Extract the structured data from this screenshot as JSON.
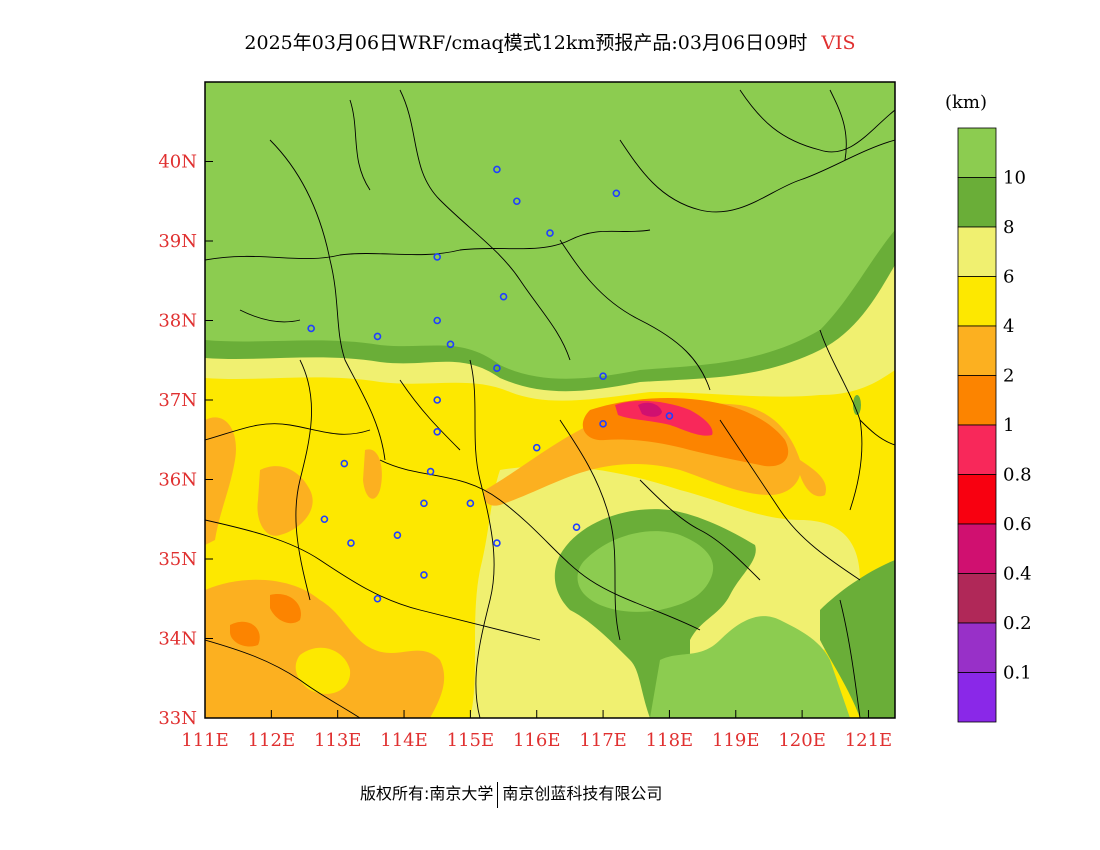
{
  "title": {
    "main": "2025年03月06日WRF/cmaq模式12km预报产品:03月06日09时",
    "variable": "VIS"
  },
  "colors": {
    "axis_label": "#e03030",
    "title_variable": "#e03030",
    "map_frame": "#000000",
    "boundary": "#000000",
    "city_marker": "#2040ff"
  },
  "map": {
    "lon_range": [
      111,
      121.4
    ],
    "lat_range": [
      33,
      41
    ],
    "x_ticks": [
      "111E",
      "112E",
      "113E",
      "114E",
      "115E",
      "116E",
      "117E",
      "118E",
      "119E",
      "120E",
      "121E"
    ],
    "y_ticks": [
      "33N",
      "34N",
      "35N",
      "36N",
      "37N",
      "38N",
      "39N",
      "40N"
    ],
    "cities": [
      {
        "lon": 115.4,
        "lat": 39.9
      },
      {
        "lon": 115.7,
        "lat": 39.5
      },
      {
        "lon": 116.2,
        "lat": 39.1
      },
      {
        "lon": 117.2,
        "lat": 39.6
      },
      {
        "lon": 114.5,
        "lat": 38.8
      },
      {
        "lon": 115.5,
        "lat": 38.3
      },
      {
        "lon": 112.6,
        "lat": 37.9
      },
      {
        "lon": 113.6,
        "lat": 37.8
      },
      {
        "lon": 114.5,
        "lat": 38.0
      },
      {
        "lon": 114.7,
        "lat": 37.7
      },
      {
        "lon": 115.4,
        "lat": 37.4
      },
      {
        "lon": 117.0,
        "lat": 37.3
      },
      {
        "lon": 114.5,
        "lat": 37.0
      },
      {
        "lon": 114.5,
        "lat": 36.6
      },
      {
        "lon": 116.0,
        "lat": 36.4
      },
      {
        "lon": 117.0,
        "lat": 36.7
      },
      {
        "lon": 118.0,
        "lat": 36.8
      },
      {
        "lon": 113.1,
        "lat": 36.2
      },
      {
        "lon": 114.4,
        "lat": 36.1
      },
      {
        "lon": 114.3,
        "lat": 35.7
      },
      {
        "lon": 115.0,
        "lat": 35.7
      },
      {
        "lon": 112.8,
        "lat": 35.5
      },
      {
        "lon": 113.2,
        "lat": 35.2
      },
      {
        "lon": 113.9,
        "lat": 35.3
      },
      {
        "lon": 115.4,
        "lat": 35.2
      },
      {
        "lon": 116.6,
        "lat": 35.4
      },
      {
        "lon": 114.3,
        "lat": 34.8
      },
      {
        "lon": 113.6,
        "lat": 34.5
      }
    ]
  },
  "legend": {
    "unit": "(km)",
    "bins": [
      {
        "label": "",
        "color": "#8ccc50"
      },
      {
        "label": "10",
        "color": "#6aae38"
      },
      {
        "label": "8",
        "color": "#f0f070"
      },
      {
        "label": "6",
        "color": "#fde800"
      },
      {
        "label": "4",
        "color": "#fcb020"
      },
      {
        "label": "2",
        "color": "#fc8400"
      },
      {
        "label": "1",
        "color": "#f8285a"
      },
      {
        "label": "0.8",
        "color": "#f80010"
      },
      {
        "label": "0.6",
        "color": "#d01070"
      },
      {
        "label": "0.4",
        "color": "#b02858"
      },
      {
        "label": "0.2",
        "color": "#9830c8"
      },
      {
        "label": "0.1",
        "color": "#8a28e8"
      }
    ]
  },
  "footer": {
    "left": "版权所有:南京大学",
    "right": "南京创蓝科技有限公司"
  }
}
